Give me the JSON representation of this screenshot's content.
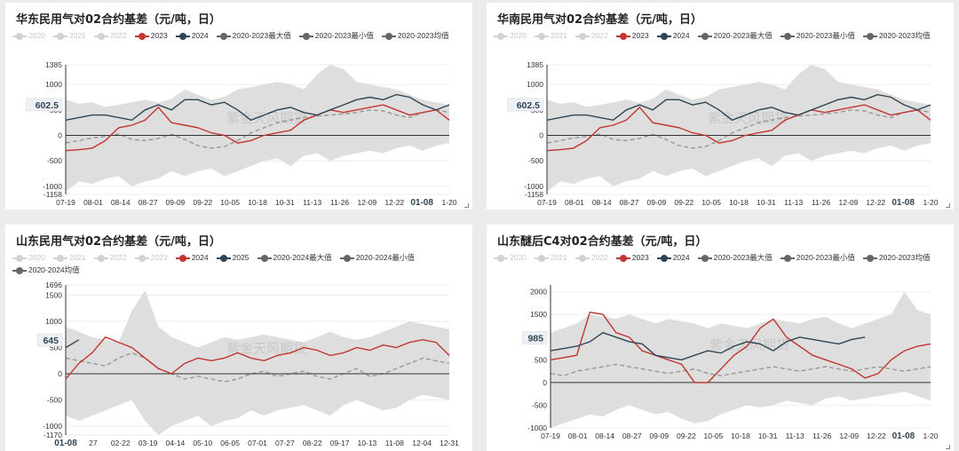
{
  "chart_data": [
    {
      "id": "p1",
      "type": "line",
      "title": "华东民用气对02合约基差（元/吨，日）",
      "legend": [
        {
          "name": "2020",
          "active": false,
          "color": "#cfcfcf"
        },
        {
          "name": "2021",
          "active": false,
          "color": "#cfcfcf"
        },
        {
          "name": "2022",
          "active": false,
          "color": "#cfcfcf"
        },
        {
          "name": "2023",
          "active": true,
          "color": "#c23531"
        },
        {
          "name": "2024",
          "active": true,
          "color": "#2f4554"
        },
        {
          "name": "2020-2023最大值",
          "active": true,
          "color": "#666666"
        },
        {
          "name": "2020-2023最小值",
          "active": true,
          "color": "#666666"
        },
        {
          "name": "2020-2023均值",
          "active": true,
          "color": "#666666"
        }
      ],
      "y_ticks": [
        "1385",
        "1000",
        "500",
        "0",
        "-500",
        "-1000",
        "-1158"
      ],
      "y_tick_values": [
        1385,
        1000,
        500,
        0,
        -500,
        -1000,
        -1158
      ],
      "ylim": [
        -1158,
        1385
      ],
      "x_ticks": [
        "07-19",
        "08-01",
        "08-14",
        "08-27",
        "09-09",
        "09-22",
        "10-05",
        "10-18",
        "10-31",
        "11-13",
        "11-26",
        "12-09",
        "12-22",
        "01-08",
        "1-20"
      ],
      "highlight_x": "01-08",
      "pointer_label": "602.5",
      "pointer_value": 602.5,
      "watermark": "紫金天风期货",
      "band_upper": [
        700,
        620,
        650,
        560,
        600,
        650,
        700,
        640,
        720,
        900,
        800,
        700,
        760,
        900,
        950,
        1000,
        1050,
        1000,
        900,
        1200,
        1385,
        1300,
        1050,
        1000,
        950,
        900,
        800,
        700,
        650,
        600
      ],
      "band_lower": [
        -1100,
        -900,
        -950,
        -850,
        -800,
        -1000,
        -900,
        -850,
        -700,
        -800,
        -700,
        -650,
        -800,
        -700,
        -600,
        -500,
        -450,
        -600,
        -400,
        -350,
        -500,
        -400,
        -350,
        -300,
        -350,
        -250,
        -200,
        -300,
        -200,
        -150
      ],
      "mean": [
        -150,
        -100,
        -50,
        -20,
        30,
        -80,
        -100,
        -60,
        20,
        -80,
        -200,
        -250,
        -220,
        -100,
        50,
        150,
        250,
        300,
        350,
        380,
        400,
        420,
        450,
        500,
        480,
        400,
        350,
        450,
        500,
        450
      ],
      "series": [
        {
          "name": "2023",
          "color": "#c23531",
          "values": [
            -300,
            -280,
            -250,
            -100,
            150,
            200,
            300,
            550,
            250,
            200,
            150,
            50,
            0,
            -150,
            -100,
            0,
            50,
            100,
            300,
            400,
            500,
            450,
            500,
            550,
            600,
            500,
            400,
            450,
            500,
            300
          ]
        },
        {
          "name": "2024",
          "color": "#2f4554",
          "values": [
            300,
            350,
            400,
            400,
            350,
            300,
            500,
            600,
            500,
            700,
            700,
            600,
            650,
            500,
            300,
            400,
            500,
            550,
            450,
            400,
            500,
            600,
            700,
            750,
            700,
            800,
            750,
            600,
            500,
            600
          ]
        }
      ]
    },
    {
      "id": "p2",
      "type": "line",
      "title": "华南民用气对02合约基差（元/吨，日）",
      "legend": [
        {
          "name": "2020",
          "active": false,
          "color": "#cfcfcf"
        },
        {
          "name": "2021",
          "active": false,
          "color": "#cfcfcf"
        },
        {
          "name": "2022",
          "active": false,
          "color": "#cfcfcf"
        },
        {
          "name": "2023",
          "active": true,
          "color": "#c23531"
        },
        {
          "name": "2024",
          "active": true,
          "color": "#2f4554"
        },
        {
          "name": "2020-2023最大值",
          "active": true,
          "color": "#666666"
        },
        {
          "name": "2020-2023最小值",
          "active": true,
          "color": "#666666"
        },
        {
          "name": "2020-2023均值",
          "active": true,
          "color": "#666666"
        }
      ],
      "y_ticks": [
        "1385",
        "1000",
        "500",
        "0",
        "-500",
        "-1000",
        "-1158"
      ],
      "y_tick_values": [
        1385,
        1000,
        500,
        0,
        -500,
        -1000,
        -1158
      ],
      "ylim": [
        -1158,
        1385
      ],
      "x_ticks": [
        "07-19",
        "08-01",
        "08-14",
        "08-27",
        "09-09",
        "09-22",
        "10-05",
        "10-18",
        "10-31",
        "11-13",
        "11-26",
        "12-09",
        "12-22",
        "01-08",
        "1-20"
      ],
      "highlight_x": "01-08",
      "pointer_label": "602.5",
      "pointer_value": 602.5,
      "watermark": "紫金天风期货",
      "band_upper": [
        700,
        620,
        650,
        560,
        600,
        650,
        700,
        640,
        720,
        900,
        800,
        700,
        760,
        900,
        950,
        1000,
        1050,
        1000,
        900,
        1200,
        1385,
        1300,
        1050,
        1000,
        950,
        900,
        800,
        700,
        650,
        600
      ],
      "band_lower": [
        -1100,
        -900,
        -950,
        -850,
        -800,
        -1000,
        -900,
        -850,
        -700,
        -800,
        -700,
        -650,
        -800,
        -700,
        -600,
        -500,
        -450,
        -600,
        -400,
        -350,
        -500,
        -400,
        -350,
        -300,
        -350,
        -250,
        -200,
        -300,
        -200,
        -150
      ],
      "mean": [
        -150,
        -100,
        -50,
        -20,
        30,
        -80,
        -100,
        -60,
        20,
        -80,
        -200,
        -250,
        -220,
        -100,
        50,
        150,
        250,
        300,
        350,
        380,
        400,
        420,
        450,
        500,
        480,
        400,
        350,
        450,
        500,
        450
      ],
      "series": [
        {
          "name": "2023",
          "color": "#c23531",
          "values": [
            -300,
            -280,
            -250,
            -100,
            150,
            200,
            300,
            550,
            250,
            200,
            150,
            50,
            0,
            -150,
            -100,
            0,
            50,
            100,
            300,
            400,
            500,
            450,
            500,
            550,
            600,
            500,
            400,
            450,
            500,
            300
          ]
        },
        {
          "name": "2024",
          "color": "#2f4554",
          "values": [
            300,
            350,
            400,
            400,
            350,
            300,
            500,
            600,
            500,
            700,
            700,
            600,
            650,
            500,
            300,
            400,
            500,
            550,
            450,
            400,
            500,
            600,
            700,
            750,
            700,
            800,
            750,
            600,
            500,
            600
          ]
        }
      ]
    },
    {
      "id": "p3",
      "type": "line",
      "title": "山东民用气对02合约基差（元/吨，日）",
      "legend": [
        {
          "name": "2020",
          "active": false,
          "color": "#cfcfcf"
        },
        {
          "name": "2021",
          "active": false,
          "color": "#cfcfcf"
        },
        {
          "name": "2022",
          "active": false,
          "color": "#cfcfcf"
        },
        {
          "name": "2023",
          "active": false,
          "color": "#cfcfcf"
        },
        {
          "name": "2024",
          "active": true,
          "color": "#c23531"
        },
        {
          "name": "2025",
          "active": true,
          "color": "#2f4554"
        },
        {
          "name": "2020-2024最大值",
          "active": true,
          "color": "#666666"
        },
        {
          "name": "2020-2024最小值",
          "active": true,
          "color": "#666666"
        },
        {
          "name": "2020-2024均值",
          "active": true,
          "color": "#666666"
        }
      ],
      "y_ticks": [
        "1696",
        "1500",
        "1000",
        "500",
        "0",
        "-500",
        "-1000",
        "-1170"
      ],
      "y_tick_values": [
        1696,
        1500,
        1000,
        500,
        0,
        -500,
        -1000,
        -1170
      ],
      "ylim": [
        -1170,
        1696
      ],
      "x_ticks": [
        "01-08",
        "27",
        "02-22",
        "03-19",
        "04-14",
        "05-10",
        "06-05",
        "07-01",
        "07-27",
        "08-22",
        "09-17",
        "10-13",
        "11-08",
        "12-04",
        "12-31"
      ],
      "highlight_x": "01-08",
      "pointer_label": "645",
      "pointer_value": 645,
      "watermark": "紫金天风期货",
      "band_upper": [
        900,
        800,
        700,
        650,
        600,
        1200,
        1600,
        900,
        700,
        600,
        500,
        600,
        700,
        650,
        700,
        750,
        700,
        650,
        600,
        700,
        800,
        700,
        650,
        700,
        800,
        900,
        1000,
        950,
        900,
        850
      ],
      "band_lower": [
        -800,
        -900,
        -800,
        -700,
        -600,
        -500,
        -900,
        -1170,
        -1000,
        -900,
        -800,
        -1000,
        -900,
        -850,
        -700,
        -800,
        -700,
        -650,
        -600,
        -700,
        -800,
        -600,
        -500,
        -600,
        -700,
        -650,
        -500,
        -400,
        -450,
        -500
      ],
      "mean": [
        300,
        250,
        200,
        150,
        300,
        400,
        300,
        100,
        0,
        -100,
        -50,
        -100,
        -150,
        -100,
        0,
        50,
        -50,
        0,
        50,
        -50,
        -100,
        0,
        100,
        -50,
        0,
        100,
        200,
        300,
        250,
        200
      ],
      "series": [
        {
          "name": "2024",
          "color": "#c23531",
          "values": [
            -100,
            200,
            400,
            700,
            600,
            500,
            300,
            100,
            0,
            200,
            300,
            250,
            300,
            400,
            300,
            250,
            350,
            400,
            500,
            450,
            350,
            400,
            500,
            450,
            550,
            500,
            600,
            650,
            600,
            350
          ]
        },
        {
          "name": "2025",
          "color": "#2f4554",
          "values": [
            500,
            650,
            null,
            null,
            null,
            null,
            null,
            null,
            null,
            null,
            null,
            null,
            null,
            null,
            null,
            null,
            null,
            null,
            null,
            null,
            null,
            null,
            null,
            null,
            null,
            null,
            null,
            null,
            null,
            null
          ]
        }
      ]
    },
    {
      "id": "p4",
      "type": "line",
      "title": "山东醚后C4对02合约基差（元/吨，日）",
      "legend": [
        {
          "name": "2020",
          "active": false,
          "color": "#cfcfcf"
        },
        {
          "name": "2021",
          "active": false,
          "color": "#cfcfcf"
        },
        {
          "name": "2022",
          "active": false,
          "color": "#cfcfcf"
        },
        {
          "name": "2023",
          "active": true,
          "color": "#c23531"
        },
        {
          "name": "2024",
          "active": true,
          "color": "#2f4554"
        },
        {
          "name": "2020-2023最大值",
          "active": true,
          "color": "#666666"
        },
        {
          "name": "2020-2023最小值",
          "active": true,
          "color": "#666666"
        },
        {
          "name": "2020-2023均值",
          "active": true,
          "color": "#666666"
        }
      ],
      "y_ticks": [
        "2000",
        "1500",
        "1000",
        "500",
        "0",
        "-500",
        "-1000"
      ],
      "y_tick_values": [
        2000,
        1500,
        1000,
        500,
        0,
        -500,
        -1000
      ],
      "ylim": [
        -1000,
        2150
      ],
      "x_ticks": [
        "07-19",
        "08-01",
        "08-14",
        "08-27",
        "09-09",
        "09-22",
        "10-05",
        "10-18",
        "10-31",
        "11-13",
        "11-26",
        "12-09",
        "12-22",
        "01-08",
        "1-20"
      ],
      "highlight_x": "01-08",
      "pointer_label": "985",
      "pointer_value": 985,
      "watermark": "紫金天风期货",
      "band_upper": [
        1100,
        1200,
        1300,
        1500,
        1450,
        1400,
        1500,
        1400,
        1300,
        1400,
        1350,
        1300,
        1200,
        1300,
        1250,
        1200,
        1300,
        1400,
        1350,
        1300,
        1400,
        1450,
        1300,
        1200,
        1300,
        1400,
        1500,
        2000,
        1600,
        1500
      ],
      "band_lower": [
        -1000,
        -900,
        -800,
        -700,
        -750,
        -600,
        -500,
        -600,
        -700,
        -650,
        -800,
        -900,
        -850,
        -700,
        -600,
        -500,
        -550,
        -500,
        -400,
        -450,
        -500,
        -350,
        -300,
        -400,
        -350,
        -300,
        -250,
        -200,
        -300,
        -400
      ],
      "mean": [
        200,
        150,
        250,
        300,
        350,
        400,
        350,
        300,
        250,
        200,
        250,
        300,
        200,
        150,
        200,
        250,
        300,
        350,
        300,
        250,
        300,
        350,
        300,
        250,
        300,
        350,
        300,
        250,
        300,
        350
      ],
      "series": [
        {
          "name": "2023",
          "color": "#c23531",
          "values": [
            500,
            550,
            600,
            1550,
            1500,
            1100,
            1000,
            700,
            600,
            500,
            400,
            0,
            0,
            300,
            600,
            800,
            1200,
            1400,
            1000,
            800,
            600,
            500,
            400,
            300,
            100,
            200,
            500,
            700,
            800,
            850
          ]
        },
        {
          "name": "2024",
          "color": "#2f4554",
          "values": [
            700,
            750,
            800,
            900,
            1100,
            1000,
            900,
            850,
            600,
            550,
            500,
            600,
            700,
            650,
            800,
            900,
            850,
            700,
            900,
            1000,
            950,
            900,
            850,
            950,
            1000,
            null,
            null,
            null,
            null,
            null
          ]
        }
      ]
    }
  ]
}
